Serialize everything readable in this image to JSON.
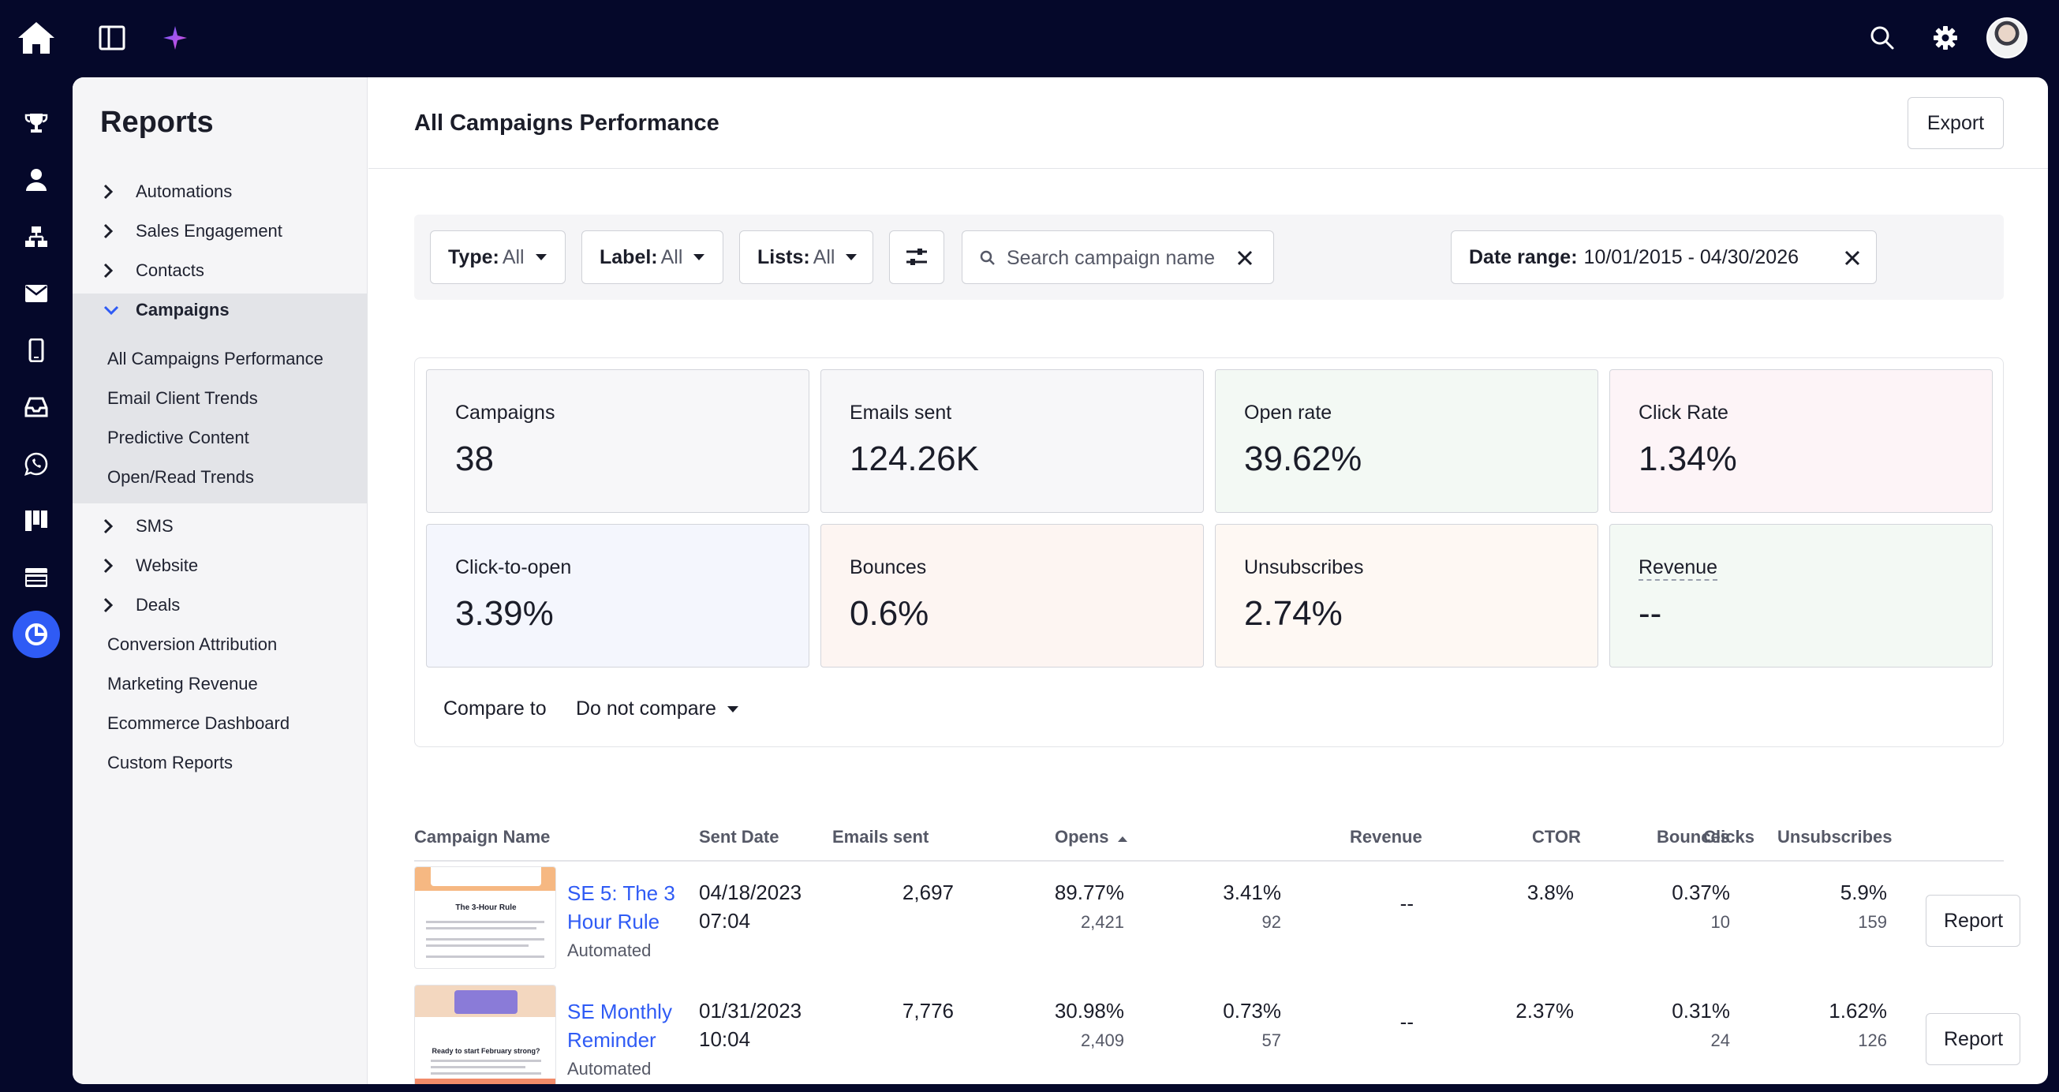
{
  "sidebar": {
    "title": "Reports",
    "groups": [
      {
        "label": "Automations"
      },
      {
        "label": "Sales Engagement"
      },
      {
        "label": "Contacts"
      },
      {
        "label": "Campaigns"
      }
    ],
    "campaign_items": [
      "All Campaigns Performance",
      "Email Client Trends",
      "Predictive Content",
      "Open/Read Trends"
    ],
    "groups2": [
      {
        "label": "SMS"
      },
      {
        "label": "Website"
      },
      {
        "label": "Deals"
      }
    ],
    "links": [
      "Conversion Attribution",
      "Marketing Revenue",
      "Ecommerce Dashboard",
      "Custom Reports"
    ]
  },
  "header": {
    "title": "All Campaigns Performance",
    "export_label": "Export"
  },
  "filters": {
    "type": {
      "label": "Type:",
      "value": "All"
    },
    "label": {
      "label": "Label:",
      "value": "All"
    },
    "lists": {
      "label": "Lists:",
      "value": "All"
    },
    "search_placeholder": "Search campaign name",
    "date_range": {
      "label": "Date range:",
      "value": "10/01/2015 - 04/30/2026"
    }
  },
  "metrics": [
    {
      "label": "Campaigns",
      "value": "38",
      "bg": "#f7f7f9"
    },
    {
      "label": "Emails sent",
      "value": "124.26K",
      "bg": "#f7f7f9"
    },
    {
      "label": "Open rate",
      "value": "39.62%",
      "bg": "#f3f9f4"
    },
    {
      "label": "Click Rate",
      "value": "1.34%",
      "bg": "#fdf4f7"
    },
    {
      "label": "Click-to-open",
      "value": "3.39%",
      "bg": "#f4f6fd"
    },
    {
      "label": "Bounces",
      "value": "0.6%",
      "bg": "#fdf5f2"
    },
    {
      "label": "Unsubscribes",
      "value": "2.74%",
      "bg": "#fef8f3"
    },
    {
      "label": "Revenue",
      "value": "--",
      "bg": "#f3f9f4"
    }
  ],
  "compare": {
    "label": "Compare to",
    "value": "Do not compare"
  },
  "table": {
    "headers": {
      "name": "Campaign Name",
      "sent_date": "Sent Date",
      "emails_sent": "Emails sent",
      "opens": "Opens",
      "clicks": "Clicks",
      "revenue": "Revenue",
      "ctor": "CTOR",
      "bounces": "Bounces",
      "unsubscribes": "Unsubscribes"
    },
    "rows": [
      {
        "name": "SE 5: The 3 Hour Rule",
        "type": "Automated",
        "sent_date": "04/18/2023",
        "sent_time": "07:04",
        "emails_sent": "2,697",
        "opens_pct": "89.77%",
        "opens_count": "2,421",
        "clicks_pct": "3.41%",
        "clicks_count": "92",
        "revenue": "--",
        "ctor": "3.8%",
        "bounces_pct": "0.37%",
        "bounces_count": "10",
        "unsub_pct": "5.9%",
        "unsub_count": "159",
        "report_label": "Report",
        "thumb_heading": "The 3-Hour Rule"
      },
      {
        "name": "SE Monthly Reminder",
        "type": "Automated",
        "sent_date": "01/31/2023",
        "sent_time": "10:04",
        "emails_sent": "7,776",
        "opens_pct": "30.98%",
        "opens_count": "2,409",
        "clicks_pct": "0.73%",
        "clicks_count": "57",
        "revenue": "--",
        "ctor": "2.37%",
        "bounces_pct": "0.31%",
        "bounces_count": "24",
        "unsub_pct": "1.62%",
        "unsub_count": "126",
        "report_label": "Report",
        "thumb_heading": "Ready to start February strong?"
      }
    ]
  }
}
